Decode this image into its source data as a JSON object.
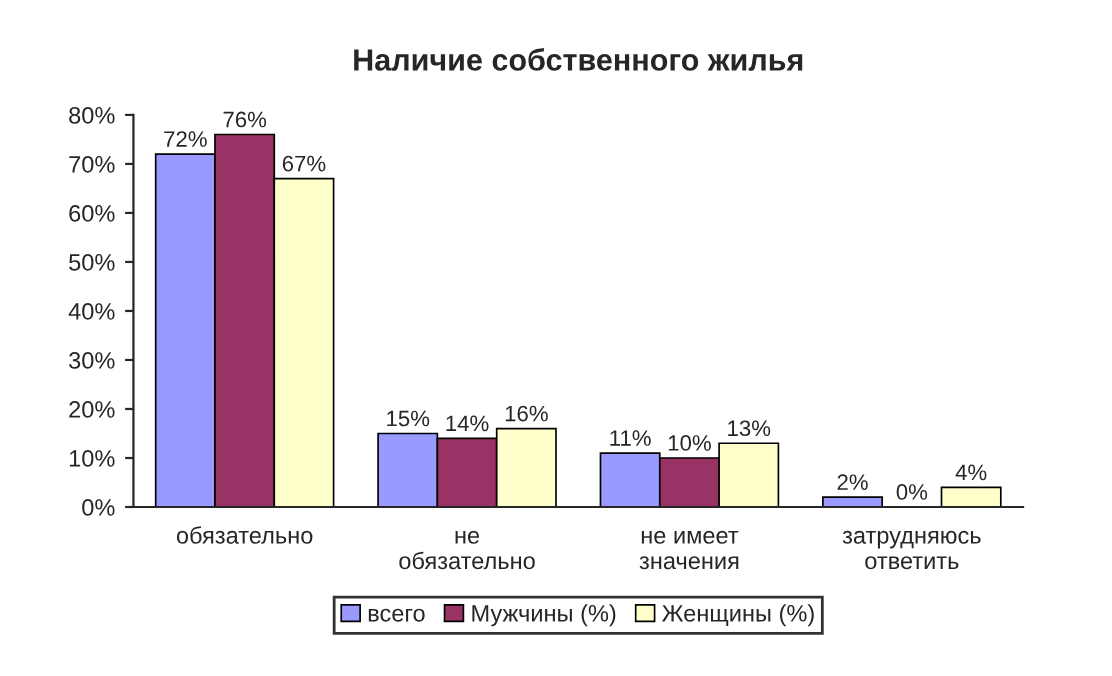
{
  "chart_data": {
    "type": "bar",
    "title": "Наличие собственного жилья",
    "categories": [
      "обязательно",
      "не\nобязательно",
      "не имеет\nзначения",
      "затрудняюсь\nответить"
    ],
    "series": [
      {
        "name": "всего",
        "color": "#9999ff",
        "values": [
          72,
          15,
          11,
          2
        ],
        "value_labels": [
          "72%",
          "15%",
          "11%",
          "2%"
        ]
      },
      {
        "name": "Мужчины (%)",
        "color": "#993366",
        "values": [
          76,
          14,
          10,
          0
        ],
        "value_labels": [
          "76%",
          "14%",
          "10%",
          "0%"
        ]
      },
      {
        "name": "Женщины (%)",
        "color": "#ffffcc",
        "values": [
          67,
          16,
          13,
          4
        ],
        "value_labels": [
          "67%",
          "16%",
          "13%",
          "4%"
        ]
      }
    ],
    "ylim": [
      0,
      80
    ],
    "yticks": [
      {
        "value": 0,
        "label": "0%"
      },
      {
        "value": 10,
        "label": "10%"
      },
      {
        "value": 20,
        "label": "20%"
      },
      {
        "value": 30,
        "label": "30%"
      },
      {
        "value": 40,
        "label": "40%"
      },
      {
        "value": 50,
        "label": "50%"
      },
      {
        "value": 60,
        "label": "60%"
      },
      {
        "value": 70,
        "label": "70%"
      },
      {
        "value": 80,
        "label": "80%"
      }
    ],
    "legend": "bottom",
    "grid": false
  }
}
